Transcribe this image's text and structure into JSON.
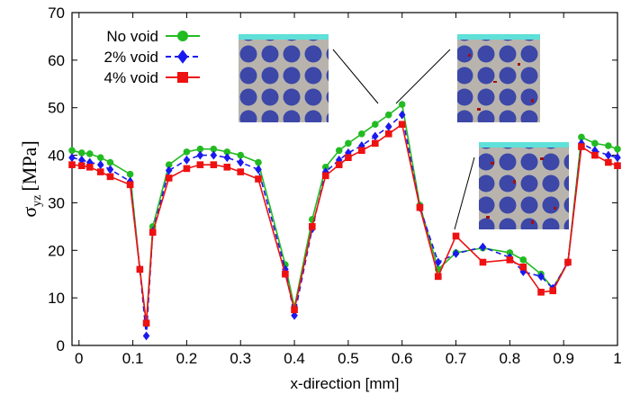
{
  "chart_data": {
    "type": "line",
    "xlabel": "x-direction [mm]",
    "ylabel_symbol": "σ",
    "ylabel_subscript": "yz",
    "ylabel_unit": "[MPa]",
    "x": [
      -0.013,
      0.005,
      0.02,
      0.04,
      0.058,
      0.095,
      0.113,
      0.125,
      0.137,
      0.167,
      0.2,
      0.225,
      0.25,
      0.275,
      0.3,
      0.333,
      0.383,
      0.4,
      0.433,
      0.458,
      0.483,
      0.5,
      0.525,
      0.55,
      0.575,
      0.6,
      0.633,
      0.667,
      0.7,
      0.75,
      0.8,
      0.825,
      0.858,
      0.88,
      0.908,
      0.933,
      0.958,
      0.983,
      1.0
    ],
    "series": [
      {
        "name": "No void",
        "color": "#22bb22",
        "marker": "circle",
        "dash": false,
        "values": [
          41,
          40.5,
          40.3,
          39.5,
          38.5,
          36,
          16,
          4.5,
          25,
          38,
          40.7,
          41.3,
          41.3,
          40.7,
          40,
          38.5,
          17,
          8,
          26.5,
          37.5,
          41,
          42.5,
          44.5,
          46.5,
          48.5,
          50.7,
          29.5,
          16,
          19.5,
          20.5,
          19.5,
          18,
          15,
          12,
          17.5,
          43.8,
          42.5,
          42,
          41.3
        ]
      },
      {
        "name": "2% void",
        "color": "#1a1aee",
        "marker": "diamond",
        "dash": true,
        "values": [
          39.5,
          39,
          38.5,
          38,
          37,
          34.5,
          16,
          2,
          24,
          36.8,
          39,
          40,
          40,
          39.5,
          38.5,
          37,
          16,
          6.3,
          24.5,
          36.5,
          39,
          40.5,
          42,
          44,
          46,
          48.5,
          29,
          17.5,
          19.3,
          20.7,
          18.5,
          15.5,
          14.5,
          12,
          17.5,
          42.5,
          41,
          40,
          39.5
        ]
      },
      {
        "name": "4% void",
        "color": "#ee1111",
        "marker": "square",
        "dash": false,
        "values": [
          38,
          37.8,
          37.5,
          36.5,
          35.5,
          33.8,
          16,
          4.7,
          23.8,
          35.2,
          37.2,
          38,
          38,
          37.5,
          36.5,
          35,
          15,
          7.5,
          25,
          35.7,
          38,
          39.5,
          41,
          42.5,
          44.5,
          46.5,
          29,
          14.5,
          23,
          17.5,
          18,
          16.5,
          11.2,
          11.5,
          17.5,
          41.8,
          40,
          38.5,
          37.8
        ]
      }
    ],
    "xlim": [
      -0.013,
      1
    ],
    "xticks": [
      0,
      0.1,
      0.2,
      0.3,
      0.4,
      0.5,
      0.6,
      0.7,
      0.8,
      0.9,
      1
    ],
    "ylim": [
      0,
      70
    ],
    "yticks": [
      0,
      10,
      20,
      30,
      40,
      50,
      60,
      70
    ],
    "grid": false,
    "legend": "upper left"
  }
}
